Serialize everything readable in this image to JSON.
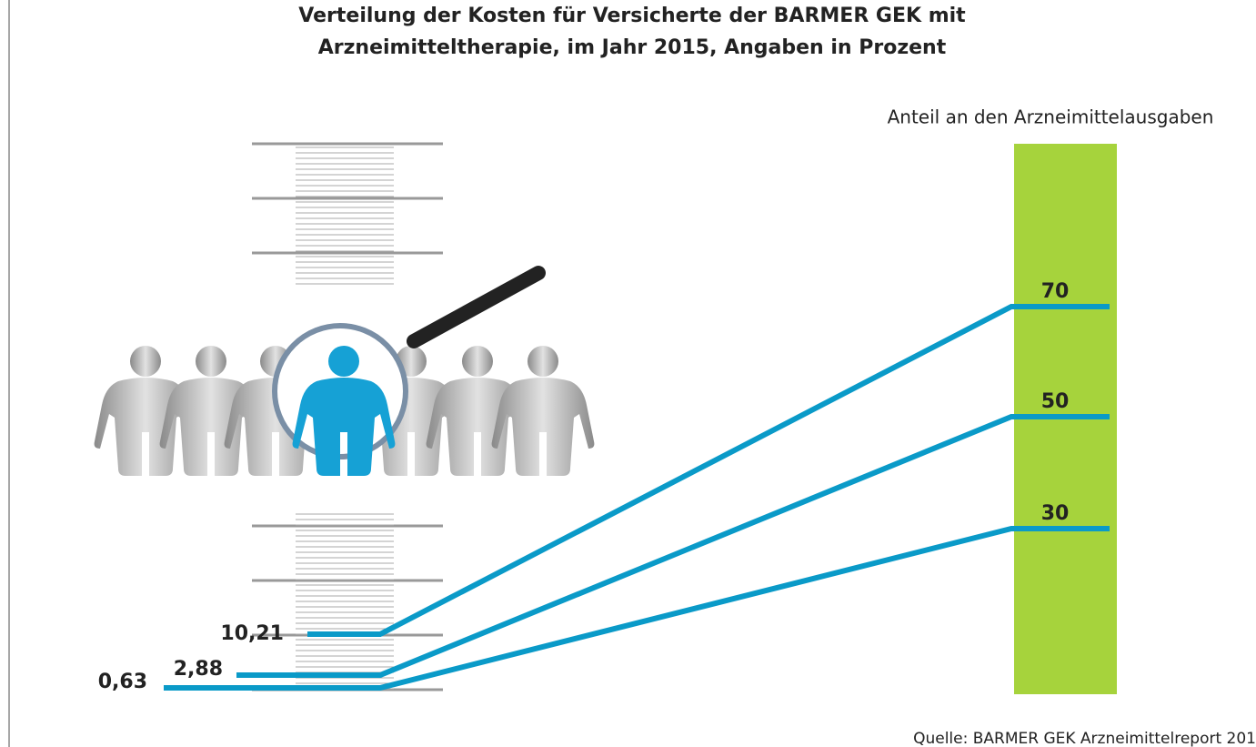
{
  "title": {
    "line1": "Verteilung der Kosten für Versicherte der BARMER GEK mit",
    "line2": "Arzneimitteltherapie, im Jahr 2015, Angaben in Prozent"
  },
  "right_header": "Anteil an den Arzneimittelausgaben",
  "links": [
    {
      "left_label": "10,21",
      "right_label": "70"
    },
    {
      "left_label": "2,88",
      "right_label": "50"
    },
    {
      "left_label": "0,63",
      "right_label": "30"
    }
  ],
  "source": "Quelle: BARMER GEK Arzneimittelreport 201"
}
